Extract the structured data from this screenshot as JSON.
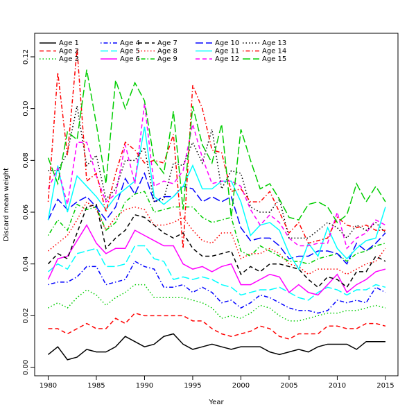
{
  "chart_data": {
    "type": "line",
    "xlabel": "Year",
    "ylabel": "Discard mean weight",
    "x": [
      1980,
      1981,
      1982,
      1983,
      1984,
      1985,
      1986,
      1987,
      1988,
      1989,
      1990,
      1991,
      1992,
      1993,
      1994,
      1995,
      1996,
      1997,
      1998,
      1999,
      2000,
      2001,
      2002,
      2003,
      2004,
      2005,
      2006,
      2007,
      2008,
      2009,
      2010,
      2011,
      2012,
      2013,
      2014,
      2015
    ],
    "xlim": [
      1978.6,
      2016.3
    ],
    "xticks": [
      1980,
      1985,
      1990,
      1995,
      2000,
      2005,
      2010,
      2015
    ],
    "ylim": [
      -0.0032,
      0.1291
    ],
    "yticks": [
      {
        "value": 0,
        "label": "0.00"
      },
      0.02,
      0.04,
      0.06,
      0.08,
      {
        "value": 0.1,
        "label": "0.10"
      },
      0.12
    ],
    "legend": "top-left",
    "series": [
      {
        "name": "Age 1",
        "color": "#000000",
        "linetype": "solid",
        "values": [
          0.005,
          0.008,
          0.003,
          0.004,
          0.007,
          0.006,
          0.006,
          0.008,
          0.012,
          0.01,
          0.008,
          0.009,
          0.012,
          0.013,
          0.009,
          0.007,
          0.008,
          0.009,
          0.008,
          0.007,
          0.008,
          0.008,
          0.008,
          0.006,
          0.005,
          0.006,
          0.007,
          0.006,
          0.008,
          0.009,
          0.009,
          0.009,
          0.007,
          0.01,
          0.01,
          0.01
        ]
      },
      {
        "name": "Age 2",
        "color": "#FF0000",
        "linetype": "dashed",
        "values": [
          0.015,
          0.015,
          0.013,
          0.015,
          0.017,
          0.015,
          0.015,
          0.019,
          0.017,
          0.021,
          0.02,
          0.02,
          0.02,
          0.02,
          0.02,
          0.018,
          0.018,
          0.015,
          0.013,
          0.012,
          0.013,
          0.014,
          0.016,
          0.015,
          0.012,
          0.011,
          0.013,
          0.013,
          0.013,
          0.016,
          0.016,
          0.015,
          0.015,
          0.017,
          0.017,
          0.016
        ]
      },
      {
        "name": "Age 3",
        "color": "#00CD00",
        "linetype": "dotted",
        "values": [
          0.023,
          0.025,
          0.023,
          0.027,
          0.03,
          0.028,
          0.024,
          0.027,
          0.029,
          0.032,
          0.032,
          0.027,
          0.027,
          0.027,
          0.027,
          0.026,
          0.025,
          0.023,
          0.019,
          0.02,
          0.019,
          0.021,
          0.024,
          0.023,
          0.02,
          0.018,
          0.018,
          0.019,
          0.02,
          0.021,
          0.021,
          0.022,
          0.022,
          0.023,
          0.024,
          0.023
        ]
      },
      {
        "name": "Age 4",
        "color": "#0000FF",
        "linetype": "dotdash",
        "values": [
          0.032,
          0.033,
          0.033,
          0.035,
          0.039,
          0.039,
          0.032,
          0.033,
          0.034,
          0.041,
          0.039,
          0.038,
          0.031,
          0.031,
          0.032,
          0.029,
          0.031,
          0.029,
          0.025,
          0.026,
          0.023,
          0.025,
          0.028,
          0.027,
          0.025,
          0.023,
          0.022,
          0.022,
          0.021,
          0.022,
          0.026,
          0.025,
          0.026,
          0.025,
          0.031,
          0.029
        ]
      },
      {
        "name": "Age 5",
        "color": "#00FFFF",
        "linetype": "longdash",
        "values": [
          0.037,
          0.04,
          0.038,
          0.044,
          0.045,
          0.046,
          0.039,
          0.039,
          0.04,
          0.047,
          0.047,
          0.042,
          0.041,
          0.034,
          0.035,
          0.034,
          0.035,
          0.034,
          0.032,
          0.031,
          0.028,
          0.029,
          0.03,
          0.03,
          0.031,
          0.029,
          0.027,
          0.026,
          0.029,
          0.031,
          0.03,
          0.028,
          0.03,
          0.03,
          0.032,
          0.031
        ]
      },
      {
        "name": "Age 6",
        "color": "#FF00FF",
        "linetype": "solid",
        "values": [
          0.034,
          0.042,
          0.043,
          0.049,
          0.055,
          0.048,
          0.044,
          0.046,
          0.046,
          0.053,
          0.051,
          0.049,
          0.047,
          0.047,
          0.04,
          0.038,
          0.039,
          0.037,
          0.039,
          0.04,
          0.032,
          0.032,
          0.034,
          0.036,
          0.035,
          0.029,
          0.032,
          0.029,
          0.028,
          0.032,
          0.036,
          0.029,
          0.032,
          0.034,
          0.037,
          0.038
        ]
      },
      {
        "name": "Age 7",
        "color": "#000000",
        "linetype": "dashed",
        "values": [
          0.04,
          0.044,
          0.042,
          0.052,
          0.062,
          0.063,
          0.046,
          0.05,
          0.053,
          0.059,
          0.058,
          0.055,
          0.052,
          0.05,
          0.052,
          0.046,
          0.043,
          0.043,
          0.044,
          0.045,
          0.036,
          0.039,
          0.037,
          0.04,
          0.04,
          0.039,
          0.038,
          0.034,
          0.031,
          0.035,
          0.034,
          0.031,
          0.037,
          0.037,
          0.043,
          0.041
        ]
      },
      {
        "name": "Age 8",
        "color": "#FF0000",
        "linetype": "dotted",
        "values": [
          0.045,
          0.048,
          0.051,
          0.057,
          0.064,
          0.061,
          0.053,
          0.058,
          0.061,
          0.062,
          0.061,
          0.055,
          0.055,
          0.056,
          0.058,
          0.053,
          0.049,
          0.048,
          0.052,
          0.052,
          0.042,
          0.044,
          0.044,
          0.046,
          0.044,
          0.04,
          0.039,
          0.036,
          0.038,
          0.038,
          0.038,
          0.036,
          0.038,
          0.04,
          0.041,
          0.046
        ]
      },
      {
        "name": "Age 9",
        "color": "#00CD00",
        "linetype": "dotdash",
        "values": [
          0.051,
          0.057,
          0.053,
          0.063,
          0.061,
          0.062,
          0.053,
          0.056,
          0.064,
          0.067,
          0.068,
          0.06,
          0.061,
          0.062,
          0.062,
          0.062,
          0.058,
          0.056,
          0.057,
          0.058,
          0.045,
          0.043,
          0.047,
          0.045,
          0.043,
          0.041,
          0.041,
          0.04,
          0.042,
          0.043,
          0.044,
          0.041,
          0.044,
          0.045,
          0.047,
          0.048
        ]
      },
      {
        "name": "Age 10",
        "color": "#0000FF",
        "linetype": "longdash",
        "values": [
          0.057,
          0.065,
          0.061,
          0.064,
          0.066,
          0.062,
          0.057,
          0.062,
          0.073,
          0.067,
          0.075,
          0.064,
          0.066,
          0.066,
          0.07,
          0.069,
          0.064,
          0.066,
          0.064,
          0.066,
          0.054,
          0.049,
          0.05,
          0.05,
          0.047,
          0.042,
          0.043,
          0.043,
          0.045,
          0.045,
          0.044,
          0.04,
          0.048,
          0.045,
          0.048,
          0.052
        ]
      },
      {
        "name": "Age 11",
        "color": "#00FFFF",
        "linetype": "solid",
        "values": [
          0.057,
          0.078,
          0.06,
          0.074,
          0.07,
          0.066,
          0.061,
          0.066,
          0.069,
          0.072,
          0.093,
          0.066,
          0.063,
          0.066,
          0.07,
          0.078,
          0.069,
          0.069,
          0.072,
          0.072,
          0.064,
          0.051,
          0.055,
          0.056,
          0.053,
          0.044,
          0.038,
          0.048,
          0.043,
          0.054,
          0.046,
          0.042,
          0.046,
          0.049,
          0.05,
          0.062
        ]
      },
      {
        "name": "Age 12",
        "color": "#FF00FF",
        "linetype": "dashed",
        "values": [
          0.069,
          0.077,
          0.063,
          0.087,
          0.087,
          0.074,
          0.064,
          0.067,
          0.086,
          0.071,
          0.102,
          0.07,
          0.072,
          0.071,
          0.076,
          0.094,
          0.081,
          0.071,
          0.072,
          0.072,
          0.07,
          0.061,
          0.055,
          0.059,
          0.056,
          0.05,
          0.047,
          0.047,
          0.048,
          0.048,
          0.06,
          0.046,
          0.05,
          0.052,
          0.057,
          0.055
        ]
      },
      {
        "name": "Age 13",
        "color": "#000000",
        "linetype": "dotted",
        "values": [
          0.076,
          0.076,
          0.083,
          0.101,
          0.078,
          0.082,
          0.065,
          0.069,
          0.08,
          0.08,
          0.085,
          0.064,
          0.065,
          0.079,
          0.078,
          0.087,
          0.079,
          0.092,
          0.069,
          0.076,
          0.075,
          0.062,
          0.06,
          0.06,
          0.065,
          0.05,
          0.05,
          0.05,
          0.053,
          0.056,
          0.054,
          0.05,
          0.055,
          0.053,
          0.056,
          0.052
        ]
      },
      {
        "name": "Age 14",
        "color": "#FF0000",
        "linetype": "dotdash",
        "values": [
          0.064,
          0.114,
          0.082,
          0.123,
          0.072,
          0.075,
          0.06,
          0.075,
          0.087,
          0.084,
          0.079,
          0.08,
          0.079,
          0.09,
          0.046,
          0.109,
          0.1,
          0.084,
          0.083,
          0.068,
          0.069,
          0.064,
          0.064,
          0.068,
          0.06,
          0.052,
          0.056,
          0.048,
          0.049,
          0.05,
          0.058,
          0.055,
          0.054,
          0.055,
          0.053,
          0.053
        ]
      },
      {
        "name": "Age 15",
        "color": "#00CD00",
        "linetype": "longdash",
        "values": [
          0.081,
          0.071,
          0.091,
          0.088,
          0.115,
          0.094,
          0.071,
          0.111,
          0.1,
          0.11,
          0.103,
          0.08,
          0.075,
          0.099,
          0.061,
          0.101,
          0.086,
          0.079,
          0.094,
          0.058,
          0.092,
          0.08,
          0.069,
          0.071,
          0.065,
          0.058,
          0.057,
          0.063,
          0.064,
          0.062,
          0.056,
          0.059,
          0.071,
          0.064,
          0.07,
          0.064
        ]
      }
    ]
  }
}
